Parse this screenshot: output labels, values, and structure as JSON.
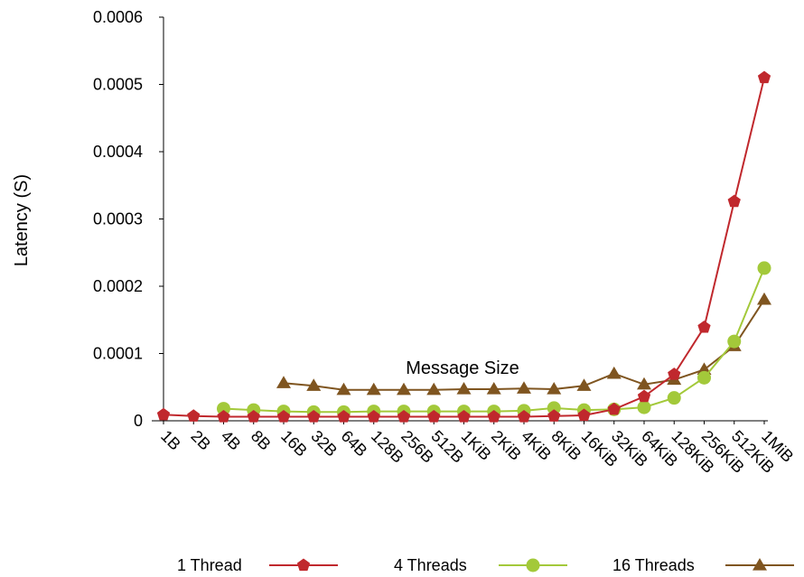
{
  "chart_data": {
    "type": "line",
    "xlabel": "Message Size",
    "ylabel": "Latency (S)",
    "categories": [
      "1B",
      "2B",
      "4B",
      "8B",
      "16B",
      "32B",
      "64B",
      "128B",
      "256B",
      "512B",
      "1KiB",
      "2KiB",
      "4KiB",
      "8KiB",
      "16KiB",
      "32KiB",
      "64KiB",
      "128KiB",
      "256KiB",
      "512KiB",
      "1MiB"
    ],
    "ylim": [
      0,
      0.0006
    ],
    "yticks": [
      "0",
      "0.0001",
      "0.0002",
      "0.0003",
      "0.0004",
      "0.0005",
      "0.0006"
    ],
    "ytick_values": [
      0,
      0.0001,
      0.0002,
      0.0003,
      0.0004,
      0.0005,
      0.0006
    ],
    "grid": false,
    "legend_position": "bottom",
    "series": [
      {
        "name": "1 Thread",
        "color": "#c0282d",
        "marker": "pentagon",
        "values": [
          9e-06,
          7e-06,
          6e-06,
          6e-06,
          6e-06,
          6e-06,
          6e-06,
          6e-06,
          6e-06,
          6e-06,
          6e-06,
          6e-06,
          6e-06,
          7e-06,
          8e-06,
          1.7e-05,
          3.6e-05,
          6.9e-05,
          0.000139,
          0.000326,
          0.00051
        ]
      },
      {
        "name": "4 Threads",
        "color": "#a3c93a",
        "marker": "circle",
        "values": [
          null,
          null,
          1.8e-05,
          1.6e-05,
          1.4e-05,
          1.3e-05,
          1.3e-05,
          1.4e-05,
          1.4e-05,
          1.4e-05,
          1.4e-05,
          1.4e-05,
          1.5e-05,
          1.9e-05,
          1.6e-05,
          1.7e-05,
          2e-05,
          3.4e-05,
          6.4e-05,
          0.000118,
          0.000227
        ]
      },
      {
        "name": "16 Threads",
        "color": "#7f5520",
        "marker": "triangle",
        "values": [
          null,
          null,
          null,
          null,
          5.6e-05,
          5.2e-05,
          4.6e-05,
          4.6e-05,
          4.6e-05,
          4.6e-05,
          4.7e-05,
          4.7e-05,
          4.8e-05,
          4.7e-05,
          5.2e-05,
          7e-05,
          5.4e-05,
          6.1e-05,
          7.6e-05,
          0.000111,
          0.00018
        ]
      }
    ]
  }
}
